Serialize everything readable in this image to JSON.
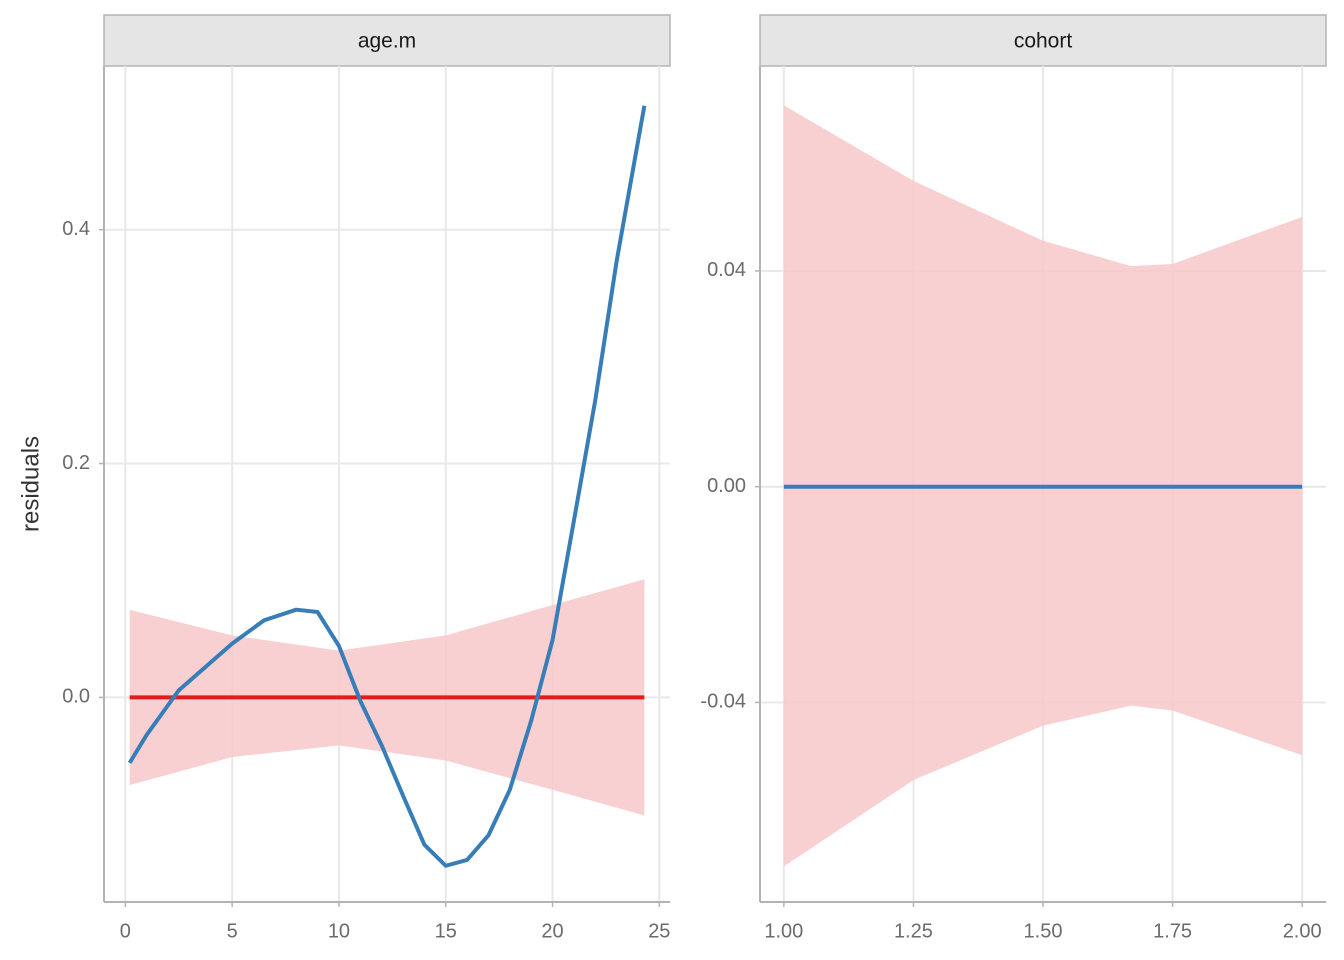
{
  "chart_data": [
    {
      "type": "line",
      "title": "age.m",
      "ylabel": "residuals",
      "xlim": [
        -1,
        25.5
      ],
      "ylim": [
        -0.175,
        0.54
      ],
      "xticks": [
        0,
        5,
        10,
        15,
        20,
        25
      ],
      "yticks": [
        {
          "value": 0,
          "label": "0.0"
        },
        {
          "value": 0.2,
          "label": "0.2"
        },
        {
          "value": 0.4,
          "label": "0.4"
        }
      ],
      "grid": true,
      "band": {
        "color": "#f8c8ca",
        "x": [
          0.2,
          5,
          10,
          15,
          20,
          24.3
        ],
        "lower": [
          -0.075,
          -0.051,
          -0.041,
          -0.054,
          -0.079,
          -0.101
        ],
        "upper": [
          0.075,
          0.053,
          0.04,
          0.053,
          0.079,
          0.101
        ]
      },
      "series": [
        {
          "color": "#e41a1c",
          "x": [
            0.2,
            24.3
          ],
          "values": [
            0,
            0
          ]
        },
        {
          "color": "#377eb8",
          "x": [
            0.2,
            1,
            2.5,
            5,
            6.5,
            8,
            9,
            10,
            11,
            12,
            13,
            14,
            15,
            16,
            17,
            18,
            19,
            20,
            21,
            22,
            23,
            24.3
          ],
          "values": [
            -0.056,
            -0.032,
            0.006,
            0.046,
            0.066,
            0.075,
            0.073,
            0.044,
            -0.003,
            -0.041,
            -0.084,
            -0.126,
            -0.144,
            -0.139,
            -0.118,
            -0.079,
            -0.02,
            0.049,
            0.151,
            0.254,
            0.373,
            0.506
          ]
        }
      ]
    },
    {
      "type": "line",
      "title": "cohort",
      "xlim": [
        0.954,
        2.046
      ],
      "ylim": [
        -0.077,
        0.078
      ],
      "xticks": [
        {
          "value": 1,
          "label": "1.00"
        },
        {
          "value": 1.25,
          "label": "1.25"
        },
        {
          "value": 1.5,
          "label": "1.50"
        },
        {
          "value": 1.75,
          "label": "1.75"
        },
        {
          "value": 2,
          "label": "2.00"
        }
      ],
      "yticks": [
        -0.04,
        {
          "value": 0,
          "label": "0.00"
        },
        0.04
      ],
      "grid": true,
      "band": {
        "color": "#f8c8ca",
        "x": [
          1,
          1.25,
          1.5,
          1.67,
          1.75,
          2
        ],
        "lower": [
          -0.0704,
          -0.0544,
          -0.0443,
          -0.0406,
          -0.0415,
          -0.0498
        ],
        "upper": [
          0.0707,
          0.0567,
          0.0456,
          0.0409,
          0.0413,
          0.05
        ]
      },
      "series": [
        {
          "color": "#377eb8",
          "x": [
            1,
            2
          ],
          "values": [
            0,
            0
          ]
        }
      ]
    }
  ]
}
